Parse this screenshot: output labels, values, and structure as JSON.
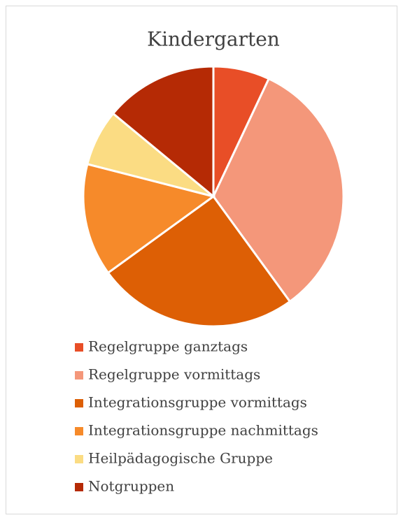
{
  "chart_data": {
    "type": "pie",
    "title": "Kindergarten",
    "categories": [
      "Regelgruppe ganztags",
      "Regelgruppe vormittags",
      "Integrationsgruppe vormittags",
      "Integrationsgruppe nachmittags",
      "Heilpädagogische Gruppe",
      "Notgruppen"
    ],
    "values": [
      7,
      33,
      25,
      14,
      7,
      14
    ],
    "colors": [
      "#e84e27",
      "#f4977a",
      "#dd5f05",
      "#f68a2a",
      "#fbdc83",
      "#b52a05"
    ],
    "legend": "bottom"
  }
}
